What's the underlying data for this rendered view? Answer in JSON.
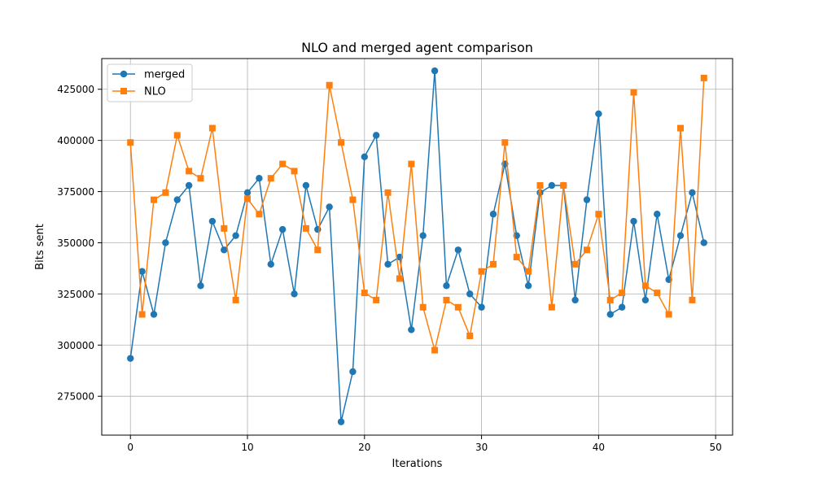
{
  "chart_data": {
    "type": "line",
    "title": "NLO and merged agent comparison",
    "xlabel": "Iterations",
    "ylabel": "Bits sent",
    "xlim": [
      -2.45,
      51.45
    ],
    "ylim": [
      256000,
      440000
    ],
    "x_ticks": [
      0,
      10,
      20,
      30,
      40,
      50
    ],
    "y_ticks": [
      275000,
      300000,
      325000,
      350000,
      375000,
      400000,
      425000
    ],
    "grid": true,
    "legend_position": "top-left",
    "x": [
      0,
      1,
      2,
      3,
      4,
      5,
      6,
      7,
      8,
      9,
      10,
      11,
      12,
      13,
      14,
      15,
      16,
      17,
      18,
      19,
      20,
      21,
      22,
      23,
      24,
      25,
      26,
      27,
      28,
      29,
      30,
      31,
      32,
      33,
      34,
      35,
      36,
      37,
      38,
      39,
      40,
      41,
      42,
      43,
      44,
      45,
      46,
      47,
      48,
      49
    ],
    "series": [
      {
        "name": "merged",
        "color": "#1f77b4",
        "marker": "circle",
        "values": [
          293500,
          336000,
          315000,
          350000,
          371000,
          378000,
          329000,
          360500,
          346500,
          353500,
          374500,
          381500,
          339500,
          356500,
          325000,
          378000,
          356500,
          367500,
          262500,
          287000,
          392000,
          402500,
          339500,
          343000,
          307500,
          353500,
          434000,
          329000,
          346500,
          325000,
          318500,
          364000,
          388500,
          353500,
          329000,
          374500,
          378000,
          378000,
          322000,
          371000,
          413000,
          315000,
          318500,
          360500,
          322000,
          364000,
          332000,
          353500,
          374500,
          350000
        ]
      },
      {
        "name": "NLO",
        "color": "#ff7f0e",
        "marker": "square",
        "values": [
          399000,
          315000,
          371000,
          374500,
          402500,
          385000,
          381500,
          406000,
          357000,
          322000,
          371500,
          364000,
          381500,
          388500,
          385000,
          357000,
          346500,
          427000,
          399000,
          371000,
          325500,
          322000,
          374500,
          332500,
          388500,
          318500,
          297500,
          322000,
          318500,
          304500,
          336000,
          339500,
          399000,
          343000,
          336000,
          378000,
          318500,
          378000,
          339500,
          346500,
          364000,
          322000,
          325500,
          423500,
          329000,
          325500,
          315000,
          406000,
          322000,
          430500
        ]
      }
    ]
  }
}
